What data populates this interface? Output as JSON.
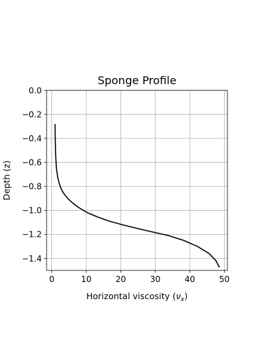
{
  "chart_data": {
    "type": "line",
    "title": "Sponge Profile",
    "xlabel": "Horizontal viscosity (",
    "xlabel_symbol": "ν",
    "xlabel_subscript": "x",
    "xlabel_suffix": ")",
    "ylabel": "Depth (z)",
    "xlim": [
      -1.5,
      50.9
    ],
    "ylim": [
      -1.5,
      0.0
    ],
    "xticks": [
      0,
      10,
      20,
      30,
      40,
      50
    ],
    "xtick_labels": [
      "0",
      "10",
      "20",
      "30",
      "40",
      "50"
    ],
    "yticks": [
      0.0,
      -0.2,
      -0.4,
      -0.6,
      -0.8,
      -1.0,
      -1.2,
      -1.4
    ],
    "ytick_labels": [
      "0.0",
      "−0.2",
      "−0.4",
      "−0.6",
      "−0.8",
      "−1.0",
      "−1.2",
      "−1.4"
    ],
    "grid": true,
    "line_color": "#000000",
    "grid_color": "#b0b0b0",
    "series": [
      {
        "x": [
          0.95,
          1.0,
          1.1,
          1.2,
          1.4,
          1.7,
          2.1,
          2.7,
          3.5,
          4.6,
          6.1,
          8.0,
          10.4,
          13.3,
          16.7,
          20.5,
          24.7,
          29.2,
          33.8,
          38.2,
          42.2,
          45.6,
          47.6,
          48.6
        ],
        "y": [
          -0.28,
          -0.4,
          -0.5,
          -0.58,
          -0.66,
          -0.72,
          -0.77,
          -0.82,
          -0.86,
          -0.9,
          -0.94,
          -0.98,
          -1.02,
          -1.055,
          -1.09,
          -1.12,
          -1.15,
          -1.18,
          -1.21,
          -1.25,
          -1.3,
          -1.36,
          -1.42,
          -1.475
        ]
      }
    ]
  }
}
